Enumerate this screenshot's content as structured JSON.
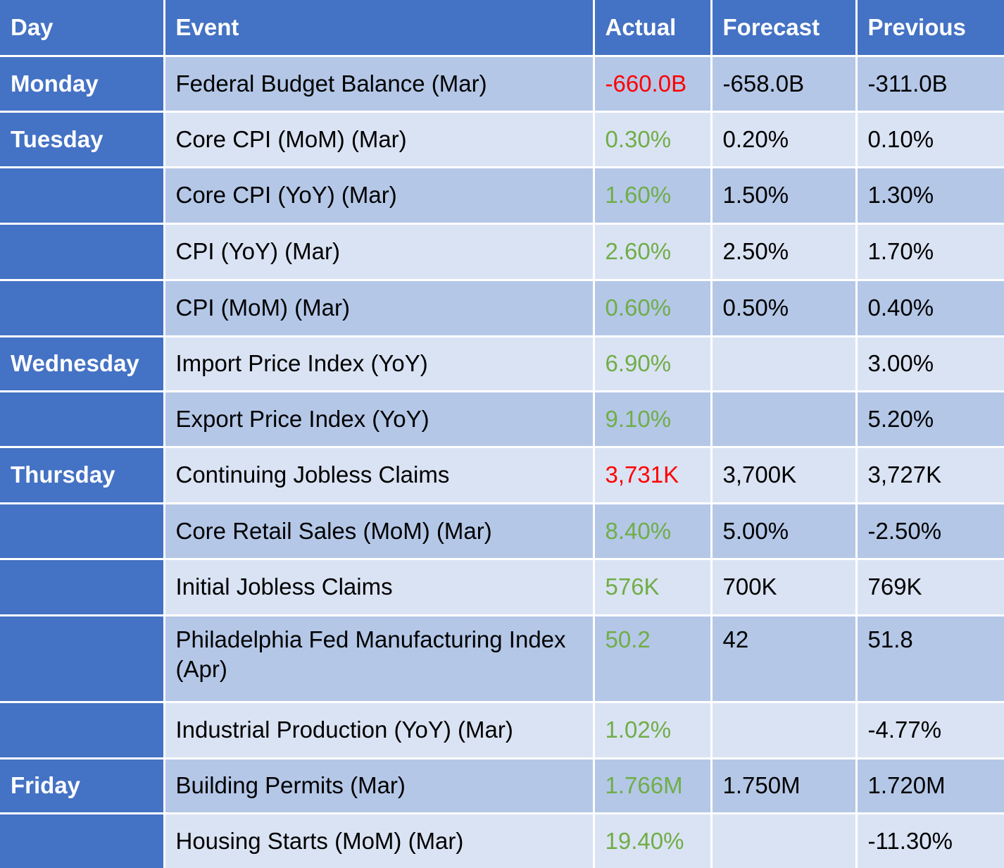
{
  "colors": {
    "header_bg": "#4472c4",
    "row_dark": "#b4c7e7",
    "row_light": "#dae3f3",
    "positive": "#70ad47",
    "negative": "#ff0000"
  },
  "headers": [
    "Day",
    "Event",
    "Actual",
    "Forecast",
    "Previous"
  ],
  "rows": [
    {
      "day": "Monday",
      "event": "Federal Budget Balance (Mar)",
      "actual": "-660.0B",
      "status": "negative",
      "forecast": "-658.0B",
      "previous": "-311.0B"
    },
    {
      "day": "Tuesday",
      "event": "Core CPI (MoM) (Mar)",
      "actual": "0.30%",
      "status": "positive",
      "forecast": "0.20%",
      "previous": "0.10%"
    },
    {
      "day": "",
      "event": "Core CPI (YoY) (Mar)",
      "actual": "1.60%",
      "status": "positive",
      "forecast": "1.50%",
      "previous": "1.30%"
    },
    {
      "day": "",
      "event": "CPI (YoY) (Mar)",
      "actual": "2.60%",
      "status": "positive",
      "forecast": "2.50%",
      "previous": "1.70%"
    },
    {
      "day": "",
      "event": "CPI (MoM) (Mar)",
      "actual": "0.60%",
      "status": "positive",
      "forecast": "0.50%",
      "previous": "0.40%"
    },
    {
      "day": "Wednesday",
      "event": "Import Price Index (YoY)",
      "actual": "6.90%",
      "status": "positive",
      "forecast": "",
      "previous": "3.00%"
    },
    {
      "day": "",
      "event": "Export Price Index (YoY)",
      "actual": "9.10%",
      "status": "positive",
      "forecast": "",
      "previous": "5.20%"
    },
    {
      "day": "Thursday",
      "event": "Continuing Jobless Claims",
      "actual": "3,731K",
      "status": "negative",
      "forecast": "3,700K",
      "previous": "3,727K"
    },
    {
      "day": "",
      "event": "Core Retail Sales (MoM) (Mar)",
      "actual": "8.40%",
      "status": "positive",
      "forecast": "5.00%",
      "previous": "-2.50%"
    },
    {
      "day": "",
      "event": "Initial Jobless Claims",
      "actual": "576K",
      "status": "positive",
      "forecast": "700K",
      "previous": "769K"
    },
    {
      "day": "",
      "event": "Philadelphia Fed Manufacturing Index (Apr)",
      "actual": "50.2",
      "status": "positive",
      "forecast": "42",
      "previous": "51.8"
    },
    {
      "day": "",
      "event": "Industrial Production (YoY) (Mar)",
      "actual": "1.02%",
      "status": "positive",
      "forecast": "",
      "previous": "-4.77%"
    },
    {
      "day": "Friday",
      "event": "Building Permits (Mar)",
      "actual": "1.766M",
      "status": "positive",
      "forecast": "1.750M",
      "previous": "1.720M"
    },
    {
      "day": "",
      "event": "Housing Starts (MoM) (Mar)",
      "actual": "19.40%",
      "status": "positive",
      "forecast": "",
      "previous": "-11.30%"
    }
  ]
}
